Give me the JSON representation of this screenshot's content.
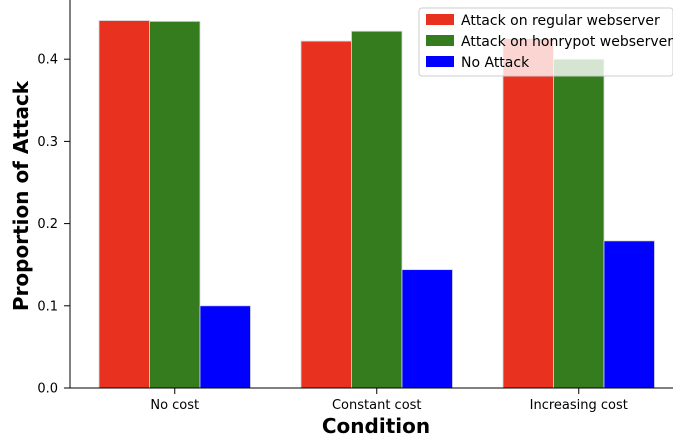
{
  "chart_data": {
    "type": "bar",
    "title": "",
    "xlabel": "Condition",
    "ylabel": "Proportion of Attack",
    "categories": [
      "No cost",
      "Constant cost",
      "Increasing cost"
    ],
    "series": [
      {
        "name": "Attack on regular webserver",
        "color": "#e8311f",
        "values": [
          0.447,
          0.422,
          0.425
        ]
      },
      {
        "name": "Attack on honrypot webserver",
        "color": "#347c1d",
        "values": [
          0.446,
          0.434,
          0.4
        ]
      },
      {
        "name": "No Attack",
        "color": "#0000ff",
        "values": [
          0.1,
          0.144,
          0.179
        ]
      }
    ],
    "ylim": [
      0,
      0.472
    ],
    "yticks": [
      0.0,
      0.1,
      0.2,
      0.3,
      0.4
    ],
    "ytick_labels": [
      "0.0",
      "0.1",
      "0.2",
      "0.3",
      "0.4"
    ],
    "grid": false,
    "legend_position": "top-right"
  }
}
